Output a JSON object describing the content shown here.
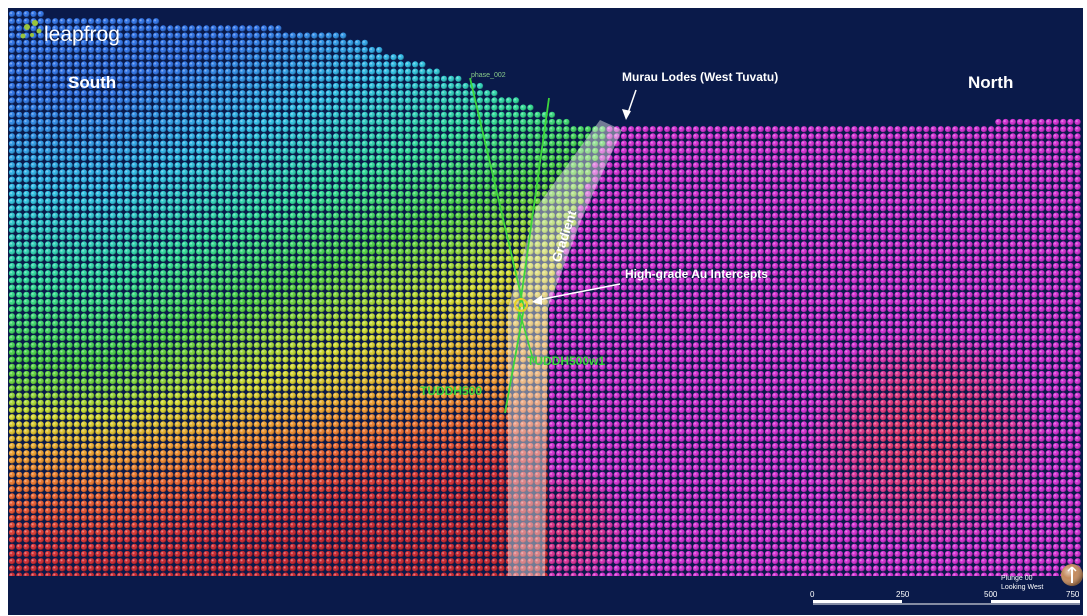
{
  "app": {
    "logo_text": "leapfrog"
  },
  "labels": {
    "south": "South",
    "north": "North",
    "murau": "Murau Lodes (West Tuvatu)",
    "gradient": "Gradient",
    "high_grade": "High-grade Au Intercepts",
    "hole1": "TUDDH500w1",
    "hole2": "TUDDH500",
    "trace_phase": "phase_002"
  },
  "view": {
    "plunge": "Plunge 00",
    "direction": "Looking West"
  },
  "scale": {
    "ticks": [
      "0",
      "250",
      "500",
      "750"
    ]
  },
  "colors": {
    "background": "#0a1a4a",
    "drillhole": "#3cd43c",
    "text": "#ffffff",
    "gradient_band": "#f2f2f2"
  },
  "icons": {
    "compass": "compass-ball-icon",
    "logo": "leapfrog-frog-icon"
  }
}
